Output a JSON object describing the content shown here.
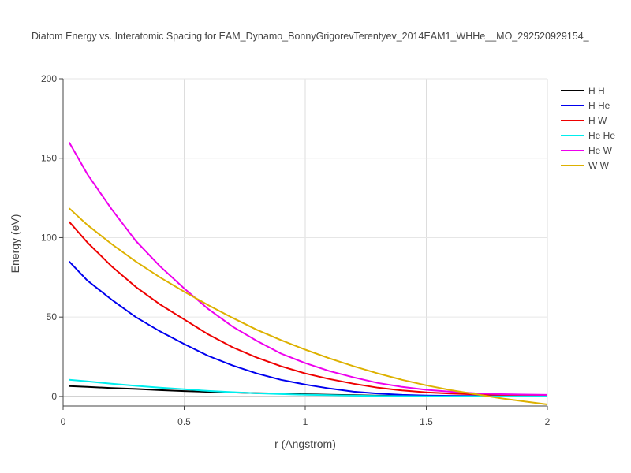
{
  "chart_data": {
    "type": "line",
    "title": "Diatom Energy vs. Interatomic Spacing for EAM_Dynamo_BonnyGrigorevTerentyev_2014EAM1_WHHe__MO_292520929154_",
    "xlabel": "r (Angstrom)",
    "ylabel": "Energy (eV)",
    "xlim": [
      0,
      2
    ],
    "ylim": [
      -6,
      200
    ],
    "x_ticks": [
      0,
      0.5,
      1,
      1.5,
      2
    ],
    "x_tick_labels": [
      "0",
      "0.5",
      "1",
      "1.5",
      "2"
    ],
    "y_ticks": [
      0,
      50,
      100,
      150,
      200
    ],
    "y_tick_labels": [
      "0",
      "50",
      "100",
      "150",
      "200"
    ],
    "grid": true,
    "legend_position": "top-right",
    "x": [
      0.025,
      0.1,
      0.2,
      0.3,
      0.4,
      0.5,
      0.6,
      0.7,
      0.8,
      0.9,
      1.0,
      1.1,
      1.2,
      1.3,
      1.4,
      1.5,
      1.6,
      1.7,
      1.8,
      1.9,
      2.0
    ],
    "series": [
      {
        "name": "H H",
        "color": "#000000",
        "values": [
          6.5,
          6.0,
          5.3,
          4.7,
          4.0,
          3.4,
          2.9,
          2.5,
          2.1,
          1.8,
          1.4,
          1.1,
          0.8,
          0.5,
          0.3,
          0.2,
          0.1,
          0.0,
          0.0,
          0.0,
          0.0
        ]
      },
      {
        "name": "H He",
        "color": "#0000ee",
        "values": [
          85,
          73,
          61,
          50,
          41,
          33,
          25.5,
          19.5,
          14.5,
          10.5,
          7.5,
          5,
          3,
          1.8,
          1,
          0.6,
          0.4,
          0.3,
          0.2,
          0.1,
          0.1
        ]
      },
      {
        "name": "H W",
        "color": "#ee0000",
        "values": [
          110,
          97,
          82,
          69,
          58,
          48.5,
          39,
          31,
          24.5,
          19,
          14.5,
          11,
          8,
          5.5,
          3.8,
          2.6,
          1.8,
          1.3,
          1,
          0.8,
          0.7
        ]
      },
      {
        "name": "He He",
        "color": "#00eeee",
        "values": [
          10.5,
          9.5,
          8,
          6.7,
          5.5,
          4.5,
          3.5,
          2.7,
          2,
          1.5,
          1.1,
          0.8,
          0.5,
          0.3,
          0.2,
          0.1,
          0.0,
          0.0,
          0.0,
          0.0,
          0.0
        ]
      },
      {
        "name": "He W",
        "color": "#ee00ee",
        "values": [
          160,
          140,
          118,
          98,
          82,
          68,
          55,
          44,
          35,
          27,
          21,
          16,
          12,
          8.5,
          6,
          4.2,
          3,
          2,
          1.5,
          1.2,
          1
        ]
      },
      {
        "name": "W W",
        "color": "#ddb100",
        "values": [
          118.5,
          108,
          96,
          85,
          75,
          66,
          57.5,
          49.5,
          42,
          35.5,
          29.5,
          24,
          19,
          14.5,
          10.5,
          7,
          4,
          1.5,
          -1,
          -3,
          -5
        ]
      }
    ]
  }
}
